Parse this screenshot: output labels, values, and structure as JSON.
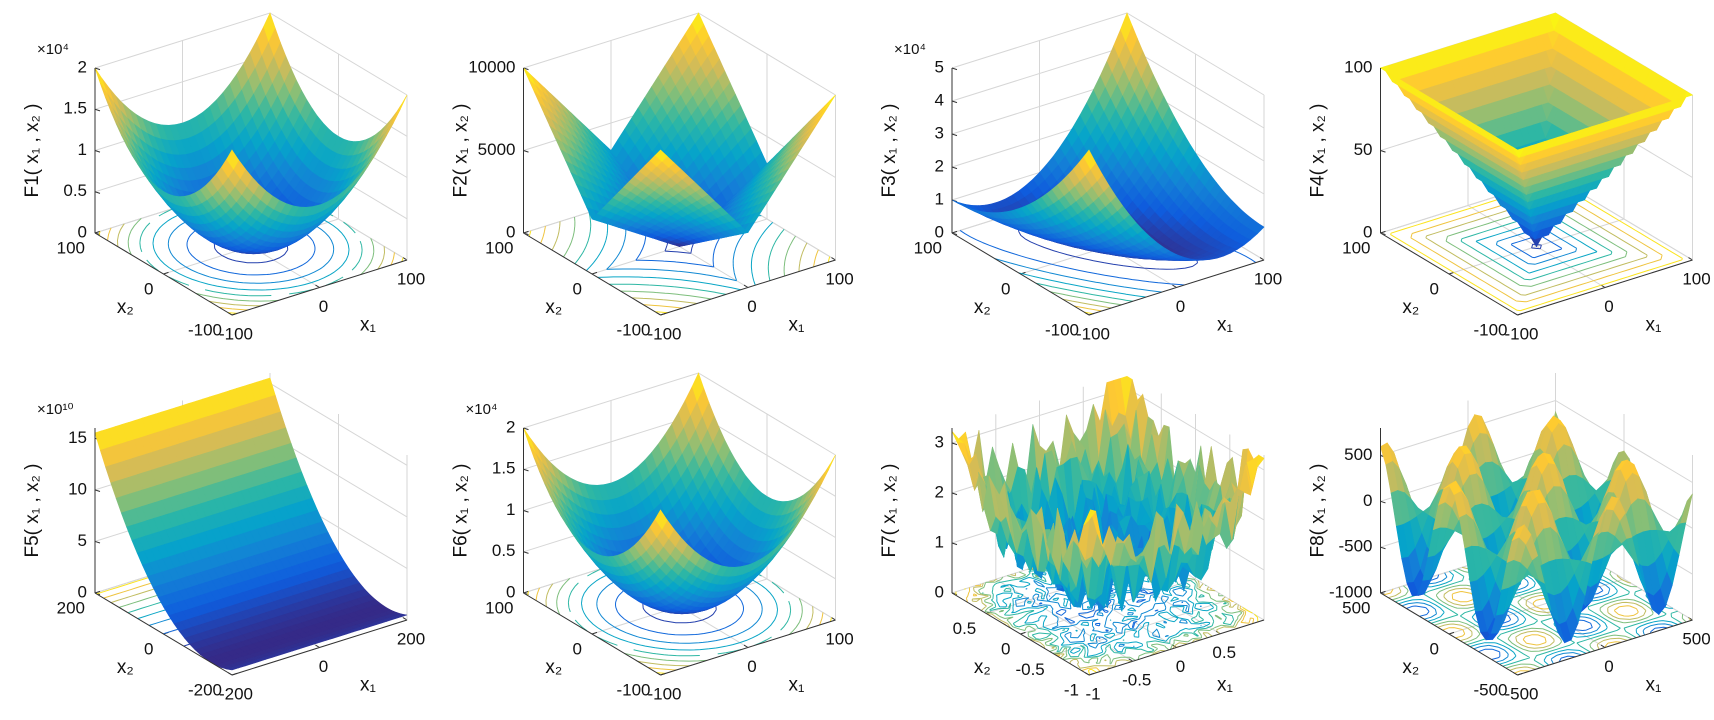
{
  "chart_data": [
    {
      "type": "surface",
      "zlabel": "F1( x₁ , x₂ )",
      "xlabel": "x₁",
      "ylabel": "x₂",
      "zexponent": "×10⁴",
      "xlim": [
        -100,
        100
      ],
      "xticks": [
        -100,
        0,
        100
      ],
      "ylim": [
        -100,
        100
      ],
      "yticks": [
        -100,
        0,
        100
      ],
      "zlim": [
        0,
        2
      ],
      "zticks": [
        0,
        0.5,
        1,
        1.5,
        2
      ],
      "grid": true,
      "colormap": [
        "#352a87",
        "#0f5cdd",
        "#1481d6",
        "#06a4ca",
        "#2eb7a4",
        "#87bf77",
        "#d1bb59",
        "#fec832",
        "#f9fb0e"
      ]
    },
    {
      "type": "surface",
      "zlabel": "F2( x₁ , x₂ )",
      "xlabel": "x₁",
      "ylabel": "x₂",
      "xlim": [
        -100,
        100
      ],
      "xticks": [
        -100,
        0,
        100
      ],
      "ylim": [
        -100,
        100
      ],
      "yticks": [
        -100,
        0,
        100
      ],
      "zlim": [
        0,
        10000
      ],
      "zticks": [
        0,
        5000,
        10000
      ],
      "grid": true,
      "colormap": [
        "#352a87",
        "#0f5cdd",
        "#1481d6",
        "#06a4ca",
        "#2eb7a4",
        "#87bf77",
        "#d1bb59",
        "#fec832",
        "#f9fb0e"
      ]
    },
    {
      "type": "surface",
      "zlabel": "F3( x₁ , x₂ )",
      "xlabel": "x₁",
      "ylabel": "x₂",
      "zexponent": "×10⁴",
      "xlim": [
        -100,
        100
      ],
      "xticks": [
        -100,
        0,
        100
      ],
      "ylim": [
        -100,
        100
      ],
      "yticks": [
        -100,
        0,
        100
      ],
      "zlim": [
        0,
        5
      ],
      "zticks": [
        0,
        1,
        2,
        3,
        4,
        5
      ],
      "grid": true,
      "colormap": [
        "#352a87",
        "#0f5cdd",
        "#1481d6",
        "#06a4ca",
        "#2eb7a4",
        "#87bf77",
        "#d1bb59",
        "#fec832",
        "#f9fb0e"
      ]
    },
    {
      "type": "surface",
      "zlabel": "F4( x₁ , x₂ )",
      "xlabel": "x₁",
      "ylabel": "x₂",
      "xlim": [
        -100,
        100
      ],
      "xticks": [
        -100,
        0,
        100
      ],
      "ylim": [
        -100,
        100
      ],
      "yticks": [
        -100,
        0,
        100
      ],
      "zlim": [
        0,
        100
      ],
      "zticks": [
        0,
        50,
        100
      ],
      "grid": true,
      "colormap": [
        "#352a87",
        "#0f5cdd",
        "#1481d6",
        "#06a4ca",
        "#2eb7a4",
        "#87bf77",
        "#d1bb59",
        "#fec832",
        "#f9fb0e"
      ]
    },
    {
      "type": "surface",
      "zlabel": "F5( x₁ , x₂ )",
      "xlabel": "x₁",
      "ylabel": "x₂",
      "zexponent": "×10¹⁰",
      "xlim": [
        -200,
        200
      ],
      "xticks": [
        -200,
        0,
        200
      ],
      "ylim": [
        -200,
        200
      ],
      "yticks": [
        -200,
        0,
        200
      ],
      "zlim": [
        0,
        16
      ],
      "zticks": [
        0,
        5,
        10,
        15
      ],
      "grid": true,
      "colormap": [
        "#352a87",
        "#0f5cdd",
        "#1481d6",
        "#06a4ca",
        "#2eb7a4",
        "#87bf77",
        "#d1bb59",
        "#fec832",
        "#f9fb0e"
      ]
    },
    {
      "type": "surface",
      "zlabel": "F6( x₁ , x₂ )",
      "xlabel": "x₁",
      "ylabel": "x₂",
      "zexponent": "×10⁴",
      "xlim": [
        -100,
        100
      ],
      "xticks": [
        -100,
        0,
        100
      ],
      "ylim": [
        -100,
        100
      ],
      "yticks": [
        -100,
        0,
        100
      ],
      "zlim": [
        0,
        2
      ],
      "zticks": [
        0,
        0.5,
        1,
        1.5,
        2
      ],
      "grid": true,
      "colormap": [
        "#352a87",
        "#0f5cdd",
        "#1481d6",
        "#06a4ca",
        "#2eb7a4",
        "#87bf77",
        "#d1bb59",
        "#fec832",
        "#f9fb0e"
      ]
    },
    {
      "type": "surface",
      "zlabel": "F7( x₁ , x₂ )",
      "xlabel": "x₁",
      "ylabel": "x₂",
      "xlim": [
        -1,
        1
      ],
      "xticks": [
        -1,
        -0.5,
        0,
        0.5
      ],
      "ylim": [
        -1,
        1
      ],
      "yticks": [
        -1,
        -0.5,
        0,
        0.5
      ],
      "zlim": [
        0,
        3.3
      ],
      "zticks": [
        0,
        1,
        2,
        3
      ],
      "grid": true,
      "colormap": [
        "#352a87",
        "#0f5cdd",
        "#1481d6",
        "#06a4ca",
        "#2eb7a4",
        "#87bf77",
        "#d1bb59",
        "#fec832",
        "#f9fb0e"
      ]
    },
    {
      "type": "surface",
      "zlabel": "F8( x₁ , x₂ )",
      "xlabel": "x₁",
      "ylabel": "x₂",
      "xlim": [
        -500,
        500
      ],
      "xticks": [
        -500,
        0,
        500
      ],
      "ylim": [
        -500,
        500
      ],
      "yticks": [
        -500,
        0,
        500
      ],
      "zlim": [
        -1000,
        800
      ],
      "zticks": [
        -1000,
        -500,
        0,
        500
      ],
      "grid": true,
      "colormap": [
        "#352a87",
        "#0f5cdd",
        "#1481d6",
        "#06a4ca",
        "#2eb7a4",
        "#87bf77",
        "#d1bb59",
        "#fec832",
        "#f9fb0e"
      ]
    }
  ]
}
